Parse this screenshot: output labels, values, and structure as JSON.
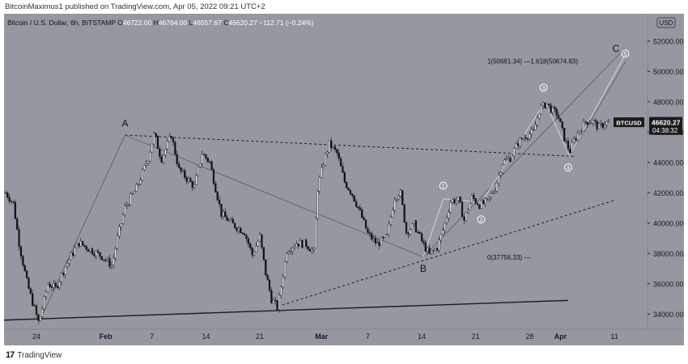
{
  "caption": "BitcoinMaximus1 published on TradingView.com, Apr 05, 2022 09:21 UTC+2",
  "footer": {
    "logo": "17",
    "brand": "TradingView"
  },
  "chart_data": {
    "type": "candlestick",
    "symbol_line": {
      "name": "Bitcoin / U.S. Dollar, 6h, BITSTAMP",
      "o": "46722.00",
      "h": "46764.00",
      "l": "46557.67",
      "c": "46620.27",
      "change": "−112.71 (−0.24%)"
    },
    "currency": "USD",
    "last_price": {
      "ticker": "BTCUSD",
      "value": "46620.27",
      "countdown": "04:38:32"
    },
    "y_ticks": [
      52000,
      50000,
      48000,
      46000,
      44000,
      42000,
      40000,
      38000,
      36000,
      34000
    ],
    "y_tick_labels": [
      "52000.00",
      "50000.00",
      "48000.00",
      "46000.00",
      "44000.00",
      "42000.00",
      "40000.00",
      "38000.00",
      "36000.00",
      "34000.00"
    ],
    "ylim": [
      33000,
      53800
    ],
    "x_ticks": [
      {
        "day": 0,
        "label": "24"
      },
      {
        "day": 9,
        "label": "Feb"
      },
      {
        "day": 15,
        "label": "7"
      },
      {
        "day": 22,
        "label": "14"
      },
      {
        "day": 29,
        "label": "21"
      },
      {
        "day": 37,
        "label": "Mar"
      },
      {
        "day": 43,
        "label": "7"
      },
      {
        "day": 50,
        "label": "14"
      },
      {
        "day": 57,
        "label": "21"
      },
      {
        "day": 64,
        "label": "28"
      },
      {
        "day": 68,
        "label": "Apr"
      },
      {
        "day": 75,
        "label": "11"
      }
    ],
    "xlim": [
      -4.2,
      79.3
    ],
    "price_path": [
      [
        -4.0,
        42000
      ],
      [
        -3.0,
        41300
      ],
      [
        -2.2,
        38500
      ],
      [
        -1.2,
        36000
      ],
      [
        0.3,
        33400
      ],
      [
        1.5,
        36000
      ],
      [
        2.5,
        35700
      ],
      [
        3.8,
        37200
      ],
      [
        5.5,
        38700
      ],
      [
        6.8,
        38300
      ],
      [
        8.5,
        37800
      ],
      [
        9.8,
        37200
      ],
      [
        10.5,
        39000
      ],
      [
        11.5,
        41000
      ],
      [
        13,
        42300
      ],
      [
        14.5,
        44300
      ],
      [
        15.3,
        45900
      ],
      [
        16.2,
        44200
      ],
      [
        17.5,
        45800
      ],
      [
        18.5,
        43500
      ],
      [
        20.5,
        42400
      ],
      [
        21.5,
        44600
      ],
      [
        22.5,
        44000
      ],
      [
        24,
        40600
      ],
      [
        25.5,
        39900
      ],
      [
        27,
        39400
      ],
      [
        28,
        37900
      ],
      [
        29,
        39100
      ],
      [
        29.7,
        36800
      ],
      [
        30.5,
        35000
      ],
      [
        31.3,
        34400
      ],
      [
        32.5,
        38200
      ],
      [
        33.8,
        38700
      ],
      [
        35,
        38600
      ],
      [
        36,
        38100
      ],
      [
        36.5,
        42300
      ],
      [
        37.3,
        44100
      ],
      [
        38,
        45200
      ],
      [
        39,
        44600
      ],
      [
        40,
        42700
      ],
      [
        41,
        41900
      ],
      [
        42,
        40700
      ],
      [
        43,
        39300
      ],
      [
        44.2,
        38600
      ],
      [
        45.5,
        39100
      ],
      [
        46.5,
        41700
      ],
      [
        47.2,
        42100
      ],
      [
        48,
        39400
      ],
      [
        49,
        39900
      ],
      [
        50.2,
        38600
      ],
      [
        51,
        37900
      ],
      [
        52,
        38400
      ],
      [
        52.8,
        39600
      ],
      [
        53.8,
        41500
      ],
      [
        54.8,
        41500
      ],
      [
        55.5,
        40200
      ],
      [
        56.5,
        41700
      ],
      [
        57.5,
        41200
      ],
      [
        58.5,
        41400
      ],
      [
        59.5,
        42300
      ],
      [
        60.5,
        44000
      ],
      [
        61.5,
        44300
      ],
      [
        62.5,
        45300
      ],
      [
        63.3,
        45700
      ],
      [
        64.5,
        46000
      ],
      [
        65.3,
        47500
      ],
      [
        66.2,
        47900
      ],
      [
        66.9,
        47400
      ],
      [
        67.6,
        47200
      ],
      [
        68.5,
        45600
      ],
      [
        69.2,
        44700
      ],
      [
        69.8,
        45500
      ],
      [
        70.5,
        46100
      ],
      [
        71.3,
        46700
      ],
      [
        72.2,
        46700
      ],
      [
        73,
        46300
      ],
      [
        73.8,
        46600
      ],
      [
        74.3,
        46620
      ]
    ],
    "trendlines": [
      {
        "style": "dashed",
        "points": [
          [
            11.5,
            45800
          ],
          [
            69.8,
            44400
          ]
        ]
      },
      {
        "style": "dashed",
        "points": [
          [
            31.3,
            34500
          ],
          [
            75,
            41500
          ]
        ]
      },
      {
        "style": "solid-thick",
        "points": [
          [
            -4.2,
            33600
          ],
          [
            69,
            34900
          ]
        ]
      },
      {
        "style": "solid-thin",
        "points": [
          [
            0.2,
            33300
          ],
          [
            11.5,
            45800
          ]
        ]
      },
      {
        "style": "solid-thin",
        "points": [
          [
            11.5,
            45800
          ],
          [
            50.2,
            37760
          ]
        ]
      },
      {
        "style": "solid-thin",
        "points": [
          [
            69.2,
            44400
          ],
          [
            76.5,
            50700
          ]
        ]
      },
      {
        "style": "solid-thin",
        "points": [
          [
            50.2,
            37760
          ],
          [
            76.3,
            51500
          ]
        ]
      }
    ],
    "wave_path": [
      [
        50.2,
        37760
      ],
      [
        52.8,
        41600
      ],
      [
        55.3,
        41500
      ],
      [
        57.7,
        41300
      ],
      [
        66,
        48000
      ],
      [
        69.2,
        44400
      ],
      [
        76.3,
        51000
      ]
    ],
    "labels": [
      {
        "text": "A",
        "at": [
          11.5,
          46350
        ]
      },
      {
        "text": "B",
        "at": [
          50.2,
          36780
        ]
      },
      {
        "text": "C",
        "at": [
          75.2,
          51300
        ]
      }
    ],
    "wave_labels": [
      {
        "text": "1",
        "at": [
          52.8,
          42460
        ]
      },
      {
        "text": "2",
        "at": [
          57.7,
          40240
        ]
      },
      {
        "text": "3",
        "at": [
          65.8,
          48930
        ]
      },
      {
        "text": "4",
        "at": [
          69.0,
          43660
        ]
      },
      {
        "text": "5",
        "at": [
          76.4,
          51180
        ]
      }
    ],
    "fib_levels": [
      {
        "text": "1(50681.34) —1.618(50674.83)",
        "at": [
          58.5,
          50680
        ]
      },
      {
        "text": "0(37756.33) —",
        "at": [
          58.5,
          37756
        ]
      }
    ]
  }
}
